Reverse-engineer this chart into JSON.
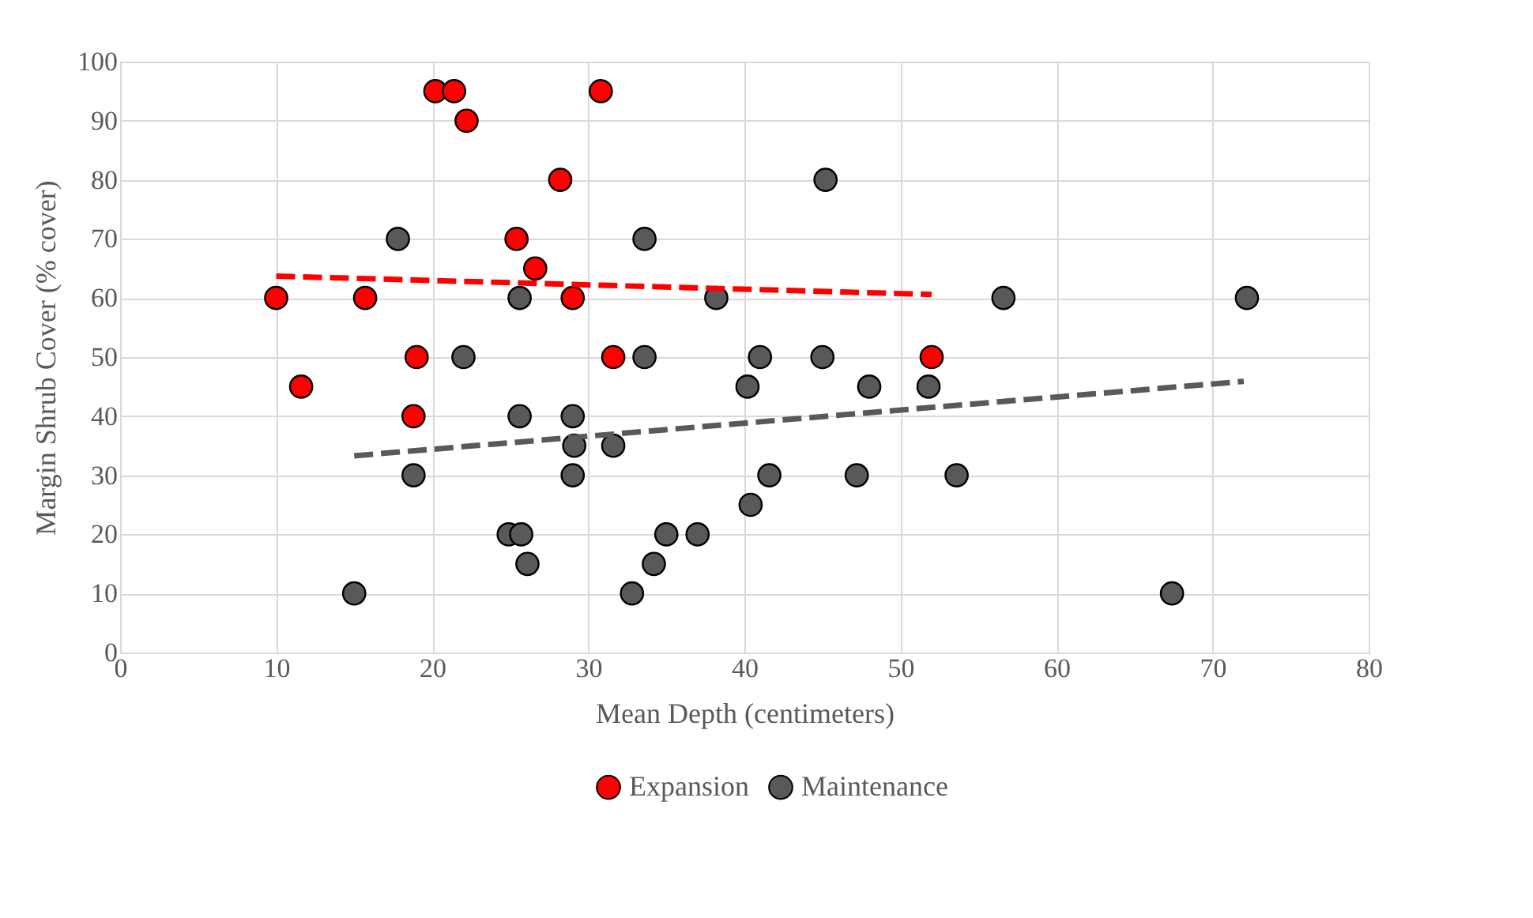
{
  "chart_data": {
    "type": "scatter",
    "xlabel": "Mean Depth (centimeters)",
    "ylabel": "Margin Shrub Cover (% cover)",
    "xlim": [
      0,
      80
    ],
    "xticks": [
      0,
      10,
      20,
      30,
      40,
      50,
      60,
      70,
      80
    ],
    "ylim": [
      0,
      100
    ],
    "yticks": [
      0,
      10,
      20,
      30,
      40,
      50,
      60,
      70,
      80,
      90,
      100
    ],
    "grid": true,
    "legend": "bottom",
    "marker": "circle",
    "series": [
      {
        "name": "Expansion",
        "color": "#ff0000",
        "x": [
          10,
          11.6,
          15.7,
          19,
          18.8,
          20.2,
          21.4,
          22.2,
          25.4,
          26.6,
          28.2,
          29,
          30.8,
          31.6,
          52
        ],
        "values": [
          60,
          45,
          60,
          50,
          40,
          95,
          95,
          90,
          70,
          65,
          80,
          60,
          95,
          50,
          50
        ]
      },
      {
        "name": "Maintenance",
        "color": "#595959",
        "x": [
          15,
          17.8,
          18.8,
          22,
          25.6,
          25.6,
          24.9,
          25.7,
          26.1,
          29,
          29.1,
          29,
          31.6,
          32.8,
          33.6,
          33.6,
          34.2,
          35,
          37,
          38.2,
          40.2,
          40.4,
          41,
          41.6,
          45,
          45.2,
          47.2,
          48,
          51.8,
          53.6,
          56.6,
          67.4,
          72.2
        ],
        "values": [
          10,
          70,
          30,
          50,
          60,
          40,
          20,
          20,
          15,
          40,
          35,
          30,
          35,
          10,
          70,
          50,
          15,
          20,
          20,
          60,
          45,
          25,
          50,
          30,
          50,
          80,
          30,
          45,
          45,
          30,
          60,
          10,
          60
        ]
      },
      {
        "color": "#ff0000",
        "type": "line",
        "marker": "none",
        "line_style": "dashed",
        "x": [
          10,
          52
        ],
        "values": [
          63.7,
          60.6
        ]
      },
      {
        "color": "#595959",
        "type": "line",
        "marker": "none",
        "line_style": "dashed",
        "x": [
          15,
          72
        ],
        "values": [
          33.3,
          45.9
        ]
      }
    ]
  }
}
